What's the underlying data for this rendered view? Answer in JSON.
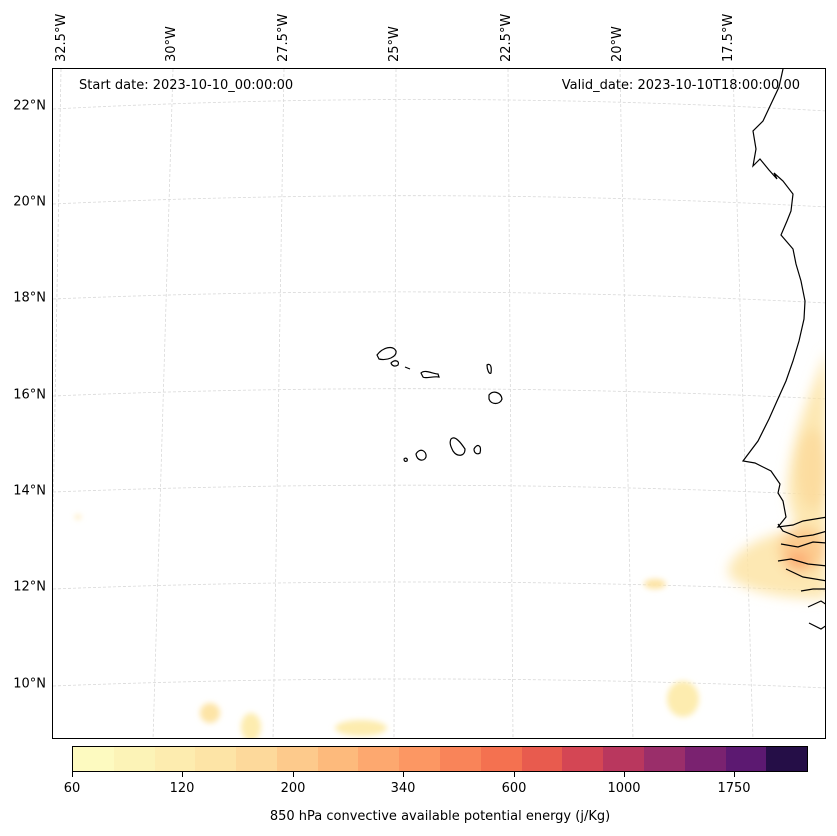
{
  "map": {
    "start_date": "Start date: 2023-10-10_00:00:00",
    "valid_date": "Valid_date: 2023-10-10T18:00:00.00",
    "lat_labels": [
      "22°N",
      "20°N",
      "18°N",
      "16°N",
      "14°N",
      "12°N",
      "10°N"
    ],
    "lon_labels": [
      "32.5°W",
      "30°W",
      "27.5°W",
      "25°W",
      "22.5°W",
      "20°W",
      "17.5°W"
    ]
  },
  "colorbar": {
    "title": "850 hPa convective available potential energy (j/Kg)",
    "tick_labels": [
      "60",
      "120",
      "200",
      "340",
      "600",
      "1000",
      "1750"
    ],
    "colors": [
      "#fdfac0",
      "#fcf3b7",
      "#fdecaf",
      "#fde4a6",
      "#fdd99b",
      "#fdca8c",
      "#fdba7c",
      "#fda86f",
      "#fc9763",
      "#f98459",
      "#f47150",
      "#e85b4e",
      "#d44654",
      "#b9375e",
      "#9a2e6a",
      "#7a2270",
      "#5c1971",
      "#250e47"
    ],
    "data_field": "850 hPa convective available potential energy",
    "units": "j/Kg"
  }
}
